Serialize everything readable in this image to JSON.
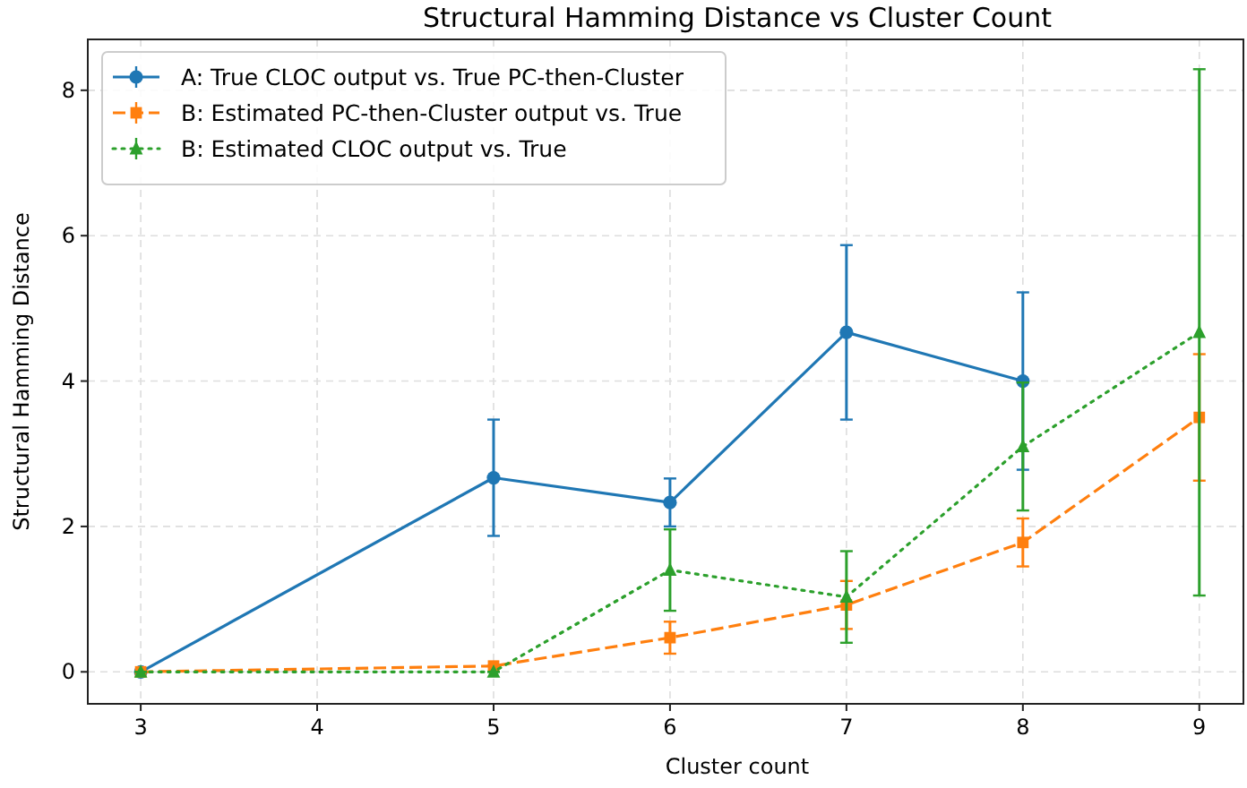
{
  "chart_data": {
    "type": "line",
    "title": "Structural Hamming Distance vs Cluster Count",
    "xlabel": "Cluster count",
    "ylabel": "Structural Hamming Distance",
    "xlim": [
      2.7,
      9.25
    ],
    "ylim": [
      -0.44,
      8.7
    ],
    "xticks": [
      3,
      4,
      5,
      6,
      7,
      8,
      9
    ],
    "yticks": [
      0,
      2,
      4,
      6,
      8
    ],
    "grid": true,
    "legend": "top left",
    "series": [
      {
        "name": "A: True CLOC output vs. True PC-then-Cluster",
        "color": "#1f77b4",
        "marker": "circle",
        "line_style": "solid",
        "x": [
          3,
          5,
          6,
          7,
          8
        ],
        "values": [
          0,
          2.67,
          2.33,
          4.67,
          4.0
        ],
        "errors": [
          0,
          0.8,
          0.33,
          1.2,
          1.22
        ]
      },
      {
        "name": "B: Estimated PC-then-Cluster output vs. True",
        "color": "#ff7f0e",
        "marker": "square",
        "line_style": "dashed",
        "x": [
          3,
          5,
          6,
          7,
          8,
          9
        ],
        "values": [
          0,
          0.08,
          0.47,
          0.92,
          1.78,
          3.5
        ],
        "errors": [
          0,
          0,
          0.22,
          0.33,
          0.33,
          0.87
        ]
      },
      {
        "name": "B: Estimated CLOC output vs. True",
        "color": "#2ca02c",
        "marker": "triangle",
        "line_style": "dotted",
        "x": [
          3,
          5,
          6,
          7,
          8,
          9
        ],
        "values": [
          0,
          0,
          1.4,
          1.03,
          3.1,
          4.67
        ],
        "errors": [
          0,
          0,
          0.56,
          0.63,
          0.88,
          3.62
        ]
      }
    ]
  }
}
